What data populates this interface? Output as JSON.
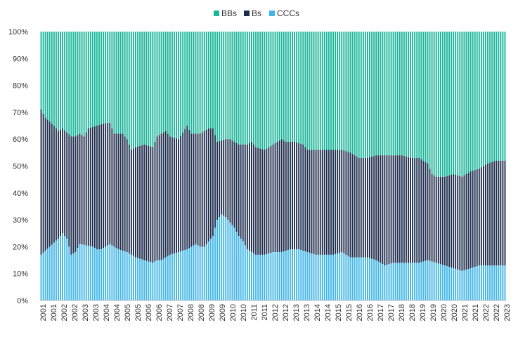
{
  "chart_data": {
    "type": "bar",
    "stacked": true,
    "percent_stacked": true,
    "title": "",
    "xlabel": "",
    "ylabel": "",
    "ylim": [
      0,
      100
    ],
    "yticks": [
      "0%",
      "10%",
      "20%",
      "30%",
      "40%",
      "50%",
      "60%",
      "70%",
      "80%",
      "90%",
      "100%"
    ],
    "xticks": [
      "2001",
      "2001",
      "2002",
      "2002",
      "2003",
      "2003",
      "2004",
      "2004",
      "2005",
      "2005",
      "2006",
      "2006",
      "2007",
      "2007",
      "2008",
      "2008",
      "2009",
      "2009",
      "2010",
      "2010",
      "2011",
      "2011",
      "2012",
      "2012",
      "2013",
      "2013",
      "2014",
      "2014",
      "2015",
      "2015",
      "2016",
      "2016",
      "2017",
      "2017",
      "2018",
      "2018",
      "2019",
      "2019",
      "2020",
      "2020",
      "2021",
      "2021",
      "2022",
      "2022",
      "2023"
    ],
    "legend_position": "top-center",
    "grid": false,
    "series": [
      {
        "name": "BBs",
        "color": "#1ab59a"
      },
      {
        "name": "Bs",
        "color": "#1e2d4d"
      },
      {
        "name": "CCCs",
        "color": "#41b6e6"
      }
    ],
    "ccc_key": [
      [
        0,
        17
      ],
      [
        4,
        20
      ],
      [
        8,
        23
      ],
      [
        10,
        25
      ],
      [
        12,
        23
      ],
      [
        14,
        17
      ],
      [
        16,
        18
      ],
      [
        18,
        21
      ],
      [
        24,
        20
      ],
      [
        26,
        19
      ],
      [
        28,
        19
      ],
      [
        32,
        21
      ],
      [
        36,
        19
      ],
      [
        40,
        18
      ],
      [
        44,
        16
      ],
      [
        48,
        15
      ],
      [
        52,
        14
      ],
      [
        54,
        15
      ],
      [
        56,
        15
      ],
      [
        60,
        17
      ],
      [
        64,
        18
      ],
      [
        68,
        19
      ],
      [
        72,
        21
      ],
      [
        74,
        20
      ],
      [
        76,
        20
      ],
      [
        80,
        24
      ],
      [
        82,
        30
      ],
      [
        84,
        32
      ],
      [
        86,
        31
      ],
      [
        88,
        29
      ],
      [
        90,
        27
      ],
      [
        92,
        24
      ],
      [
        94,
        22
      ],
      [
        96,
        19
      ],
      [
        98,
        18
      ],
      [
        100,
        17
      ],
      [
        104,
        17
      ],
      [
        108,
        18
      ],
      [
        112,
        18
      ],
      [
        116,
        19
      ],
      [
        120,
        19
      ],
      [
        124,
        18
      ],
      [
        128,
        17
      ],
      [
        132,
        17
      ],
      [
        136,
        17
      ],
      [
        140,
        18
      ],
      [
        144,
        16
      ],
      [
        148,
        16
      ],
      [
        152,
        16
      ],
      [
        156,
        15
      ],
      [
        160,
        13
      ],
      [
        164,
        14
      ],
      [
        168,
        14
      ],
      [
        172,
        14
      ],
      [
        176,
        14
      ],
      [
        180,
        15
      ],
      [
        184,
        14
      ],
      [
        188,
        13
      ],
      [
        192,
        12
      ],
      [
        196,
        11
      ],
      [
        200,
        12
      ],
      [
        204,
        13
      ],
      [
        208,
        13
      ],
      [
        212,
        13
      ],
      [
        216,
        13
      ]
    ],
    "bs_top_key": [
      [
        0,
        71
      ],
      [
        2,
        68
      ],
      [
        6,
        65
      ],
      [
        8,
        63
      ],
      [
        10,
        64
      ],
      [
        14,
        61
      ],
      [
        16,
        61
      ],
      [
        18,
        62
      ],
      [
        20,
        61
      ],
      [
        22,
        64
      ],
      [
        26,
        65
      ],
      [
        30,
        66
      ],
      [
        32,
        66
      ],
      [
        34,
        62
      ],
      [
        38,
        62
      ],
      [
        40,
        60
      ],
      [
        42,
        56
      ],
      [
        44,
        57
      ],
      [
        48,
        58
      ],
      [
        52,
        57
      ],
      [
        54,
        61
      ],
      [
        58,
        63
      ],
      [
        60,
        61
      ],
      [
        64,
        60
      ],
      [
        68,
        65
      ],
      [
        70,
        62
      ],
      [
        74,
        62
      ],
      [
        76,
        63
      ],
      [
        78,
        64
      ],
      [
        80,
        64
      ],
      [
        82,
        59
      ],
      [
        86,
        60
      ],
      [
        88,
        60
      ],
      [
        90,
        59
      ],
      [
        92,
        58
      ],
      [
        96,
        58
      ],
      [
        98,
        59
      ],
      [
        100,
        57
      ],
      [
        104,
        56
      ],
      [
        108,
        58
      ],
      [
        112,
        60
      ],
      [
        114,
        59
      ],
      [
        118,
        59
      ],
      [
        122,
        58
      ],
      [
        124,
        56
      ],
      [
        128,
        56
      ],
      [
        132,
        56
      ],
      [
        136,
        56
      ],
      [
        140,
        56
      ],
      [
        144,
        55
      ],
      [
        148,
        53
      ],
      [
        152,
        53
      ],
      [
        156,
        54
      ],
      [
        160,
        54
      ],
      [
        164,
        54
      ],
      [
        168,
        54
      ],
      [
        172,
        53
      ],
      [
        176,
        53
      ],
      [
        180,
        51
      ],
      [
        182,
        47
      ],
      [
        184,
        46
      ],
      [
        188,
        46
      ],
      [
        192,
        47
      ],
      [
        196,
        46
      ],
      [
        200,
        48
      ],
      [
        204,
        49
      ],
      [
        208,
        51
      ],
      [
        212,
        52
      ],
      [
        216,
        52
      ]
    ]
  }
}
